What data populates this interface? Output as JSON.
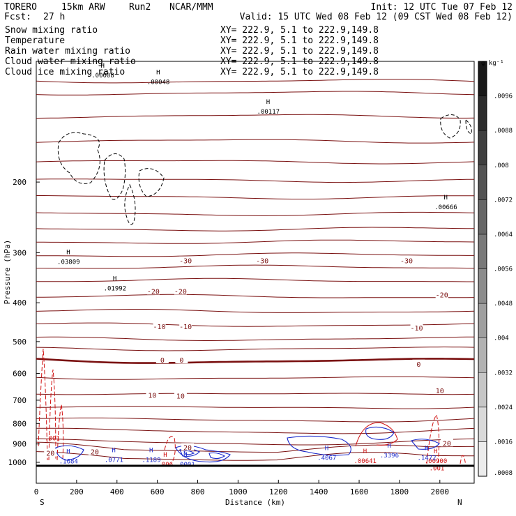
{
  "header": {
    "model": "TORERO",
    "resolution": "15km ARW",
    "run": "Run2",
    "org": "NCAR/MMM",
    "init": "Init: 12 UTC Tue 07 Feb 12",
    "fcst_label": "Fcst:",
    "fcst_value": "27 h",
    "valid": "Valid: 15 UTC Wed 08 Feb 12 (09 CST Wed 08 Feb 12)"
  },
  "legend": [
    {
      "name": "Snow mixing ratio",
      "color": "#000000",
      "xy": "XY= 222.9,  5.1 to 222.9,149.8"
    },
    {
      "name": "Temperature",
      "color": "#cc0000",
      "xy": "XY= 222.9,  5.1 to 222.9,149.8"
    },
    {
      "name": "Rain water mixing ratio",
      "color": "#cc0000",
      "xy": "XY= 222.9,  5.1 to 222.9,149.8"
    },
    {
      "name": "Cloud water mixing ratio",
      "color": "#1a1acc",
      "xy": "XY= 222.9,  5.1 to 222.9,149.8"
    },
    {
      "name": "Cloud ice mixing ratio",
      "color": "#000000",
      "xy": "XY= 222.9,  5.1 to 222.9,149.8"
    }
  ],
  "colorbar": {
    "unit": "g kg⁻¹",
    "ticks": [
      ".0008",
      ".0016",
      ".0024",
      ".0032",
      ".004",
      ".0048",
      ".0056",
      ".0064",
      ".0072",
      ".008",
      ".0088",
      ".0096"
    ]
  },
  "chart_data": {
    "type": "contour cross-section",
    "xlabel": "Distance (km)",
    "ylabel": "Pressure (hPa)",
    "xlim": [
      0,
      2170
    ],
    "ylim": [
      1050,
      100
    ],
    "x_ticks": [
      0,
      200,
      400,
      600,
      800,
      1000,
      1200,
      1400,
      1600,
      1800,
      2000
    ],
    "y_ticks": [
      200,
      300,
      400,
      500,
      600,
      700,
      800,
      900,
      1000
    ],
    "end_labels": {
      "left": "S",
      "right": "N"
    },
    "temperature_isotherm_pressures_hpa": [
      112,
      120,
      137,
      158,
      178,
      198,
      218,
      240,
      262,
      282,
      304,
      326,
      352,
      386,
      420,
      454,
      492,
      521,
      553,
      610,
      668,
      722,
      776,
      828,
      882,
      920,
      965
    ],
    "temperature_labels": [
      {
        "x": 740,
        "p": 314,
        "text": "-30"
      },
      {
        "x": 1120,
        "p": 314,
        "text": "-30"
      },
      {
        "x": 1835,
        "p": 314,
        "text": "-30"
      },
      {
        "x": 580,
        "p": 374,
        "text": "-20"
      },
      {
        "x": 715,
        "p": 374,
        "text": "-20"
      },
      {
        "x": 2010,
        "p": 382,
        "text": "-20"
      },
      {
        "x": 610,
        "p": 458,
        "text": "-10"
      },
      {
        "x": 740,
        "p": 458,
        "text": "-10"
      },
      {
        "x": 1885,
        "p": 462,
        "text": "-10"
      },
      {
        "x": 625,
        "p": 555,
        "text": "0"
      },
      {
        "x": 720,
        "p": 555,
        "text": "0"
      },
      {
        "x": 1895,
        "p": 568,
        "text": "0"
      },
      {
        "x": 575,
        "p": 679,
        "text": "10"
      },
      {
        "x": 715,
        "p": 682,
        "text": "10"
      },
      {
        "x": 2000,
        "p": 662,
        "text": "10"
      },
      {
        "x": 290,
        "p": 940,
        "text": "20"
      },
      {
        "x": 750,
        "p": 917,
        "text": "20"
      },
      {
        "x": 2035,
        "p": 895,
        "text": "20"
      },
      {
        "x": 70,
        "p": 948,
        "text": "20"
      }
    ],
    "maxima": [
      {
        "field": "snow",
        "x": 330,
        "p": 108,
        "value": ".00008"
      },
      {
        "field": "snow",
        "x": 605,
        "p": 112,
        "value": ".00048"
      },
      {
        "field": "snow",
        "x": 1150,
        "p": 133,
        "value": ".00117"
      },
      {
        "field": "snow",
        "x": 2030,
        "p": 230,
        "value": ".00666"
      },
      {
        "field": "ice",
        "x": 160,
        "p": 315,
        "value": ".03809"
      },
      {
        "field": "ice",
        "x": 390,
        "p": 367,
        "value": ".01992"
      },
      {
        "field": "rain",
        "x": 80,
        "p": 868,
        "value": ".001"
      },
      {
        "field": "rain",
        "x": 640,
        "p": 1008,
        "value": ".006"
      },
      {
        "field": "rain",
        "x": 1630,
        "p": 988,
        "value": ".00641"
      },
      {
        "field": "rain",
        "x": 1980,
        "p": 988,
        "value": ".00900"
      },
      {
        "field": "rain",
        "x": 1985,
        "p": 1031,
        "value": ".001"
      },
      {
        "field": "cloud_water",
        "x": 160,
        "p": 990,
        "value": ".1684"
      },
      {
        "field": "cloud_water",
        "x": 385,
        "p": 982,
        "value": ".0771"
      },
      {
        "field": "cloud_water",
        "x": 570,
        "p": 982,
        "value": ".1189"
      },
      {
        "field": "cloud_water",
        "x": 740,
        "p": 1008,
        "value": ".0001"
      },
      {
        "field": "cloud_water",
        "x": 1440,
        "p": 970,
        "value": ".4067"
      },
      {
        "field": "cloud_water",
        "x": 1750,
        "p": 957,
        "value": ".3396"
      },
      {
        "field": "cloud_water",
        "x": 1935,
        "p": 970,
        "value": ".1472"
      }
    ]
  },
  "colors": {
    "temperature": "#7a1010",
    "rain": "#d01010",
    "cloud_water": "#1a2acc",
    "snow_ice": "#000000",
    "ground": "#000000"
  }
}
